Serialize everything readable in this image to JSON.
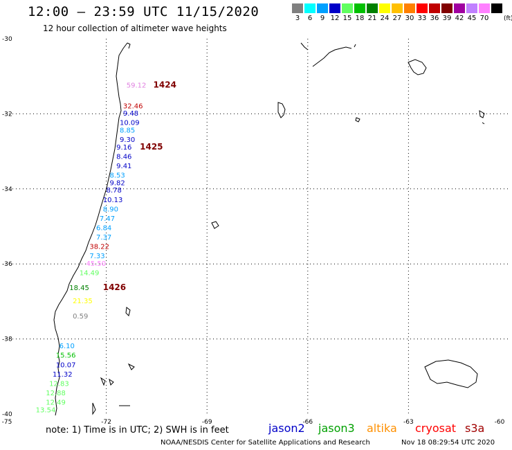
{
  "header": {
    "title": "12:00 – 23:59 UTC 11/15/2020",
    "subtitle": "12 hour collection of altimeter wave heights"
  },
  "color_scale": {
    "unit": "(ft)",
    "bins": [
      {
        "label": "3",
        "color": "#808080"
      },
      {
        "label": "6",
        "color": "#00ffff"
      },
      {
        "label": "9",
        "color": "#00a0ff"
      },
      {
        "label": "12",
        "color": "#0000c8"
      },
      {
        "label": "15",
        "color": "#60ff60"
      },
      {
        "label": "18",
        "color": "#00c000"
      },
      {
        "label": "21",
        "color": "#008000"
      },
      {
        "label": "24",
        "color": "#ffff00"
      },
      {
        "label": "27",
        "color": "#ffc000"
      },
      {
        "label": "30",
        "color": "#ff8000"
      },
      {
        "label": "33",
        "color": "#ff0000"
      },
      {
        "label": "36",
        "color": "#c00000"
      },
      {
        "label": "39",
        "color": "#800000"
      },
      {
        "label": "42",
        "color": "#a000a0"
      },
      {
        "label": "45",
        "color": "#c080ff"
      },
      {
        "label": "70",
        "color": "#ff80ff"
      },
      {
        "label": "",
        "color": "#000000"
      }
    ]
  },
  "axes": {
    "lon_ticks": [
      "-75",
      "-72",
      "-69",
      "-66",
      "-63",
      "-60"
    ],
    "lat_ticks": [
      "-30",
      "-32",
      "-34",
      "-36",
      "-38",
      "-40"
    ]
  },
  "observations": [
    {
      "text": "59.12",
      "lat": -31.3,
      "lon": -71.4,
      "color": "#e080e0"
    },
    {
      "text": "32.46",
      "lat": -31.85,
      "lon": -71.5,
      "color": "#c00000"
    },
    {
      "text": "9.48",
      "lat": -32.05,
      "lon": -71.5,
      "color": "#0000c8"
    },
    {
      "text": "10.09",
      "lat": -32.3,
      "lon": -71.6,
      "color": "#0000c8"
    },
    {
      "text": "8.85",
      "lat": -32.5,
      "lon": -71.6,
      "color": "#00a0ff"
    },
    {
      "text": "9.30",
      "lat": -32.75,
      "lon": -71.6,
      "color": "#0000c8"
    },
    {
      "text": "9.16",
      "lat": -32.95,
      "lon": -71.7,
      "color": "#0000c8"
    },
    {
      "text": "8.46",
      "lat": -33.2,
      "lon": -71.7,
      "color": "#0000c8"
    },
    {
      "text": "9.41",
      "lat": -33.45,
      "lon": -71.7,
      "color": "#0000c8"
    },
    {
      "text": "8.53",
      "lat": -33.7,
      "lon": -71.9,
      "color": "#00a0ff"
    },
    {
      "text": "9.82",
      "lat": -33.9,
      "lon": -71.9,
      "color": "#0000c8"
    },
    {
      "text": "8.78",
      "lat": -34.1,
      "lon": -72.0,
      "color": "#0000c8"
    },
    {
      "text": "10.13",
      "lat": -34.35,
      "lon": -72.1,
      "color": "#0000c8"
    },
    {
      "text": "8.90",
      "lat": -34.6,
      "lon": -72.1,
      "color": "#00a0ff"
    },
    {
      "text": "7.47",
      "lat": -34.85,
      "lon": -72.2,
      "color": "#00a0ff"
    },
    {
      "text": "6.84",
      "lat": -35.1,
      "lon": -72.3,
      "color": "#00a0ff"
    },
    {
      "text": "7.37",
      "lat": -35.35,
      "lon": -72.3,
      "color": "#00a0ff"
    },
    {
      "text": "38.22",
      "lat": -35.6,
      "lon": -72.5,
      "color": "#c00000"
    },
    {
      "text": "7.33",
      "lat": -35.85,
      "lon": -72.5,
      "color": "#00a0ff"
    },
    {
      "text": "45.50",
      "lat": -36.05,
      "lon": -72.6,
      "color": "#ff80ff"
    },
    {
      "text": "14.49",
      "lat": -36.3,
      "lon": -72.8,
      "color": "#60ff60"
    },
    {
      "text": "18.45",
      "lat": -36.7,
      "lon": -73.1,
      "color": "#008000"
    },
    {
      "text": "21.35",
      "lat": -37.05,
      "lon": -73.0,
      "color": "#ffff00"
    },
    {
      "text": "0.59",
      "lat": -37.45,
      "lon": -73.0,
      "color": "#808080"
    },
    {
      "text": "6.10",
      "lat": -38.25,
      "lon": -73.4,
      "color": "#00a0ff"
    },
    {
      "text": "15.56",
      "lat": -38.5,
      "lon": -73.5,
      "color": "#00c000"
    },
    {
      "text": "10.07",
      "lat": -38.75,
      "lon": -73.5,
      "color": "#0000c8"
    },
    {
      "text": "11.32",
      "lat": -39.0,
      "lon": -73.6,
      "color": "#0000c8"
    },
    {
      "text": "12.83",
      "lat": -39.25,
      "lon": -73.7,
      "color": "#60ff60"
    },
    {
      "text": "12.88",
      "lat": -39.5,
      "lon": -73.8,
      "color": "#60ff60"
    },
    {
      "text": "12.49",
      "lat": -39.75,
      "lon": -73.8,
      "color": "#60ff60"
    },
    {
      "text": "13.54",
      "lat": -39.95,
      "lon": -74.1,
      "color": "#60ff60"
    }
  ],
  "time_labels": [
    {
      "text": "1424",
      "lat": -31.3,
      "lon": -70.6
    },
    {
      "text": "1425",
      "lat": -32.95,
      "lon": -71.0
    },
    {
      "text": "1426",
      "lat": -36.7,
      "lon": -72.1
    }
  ],
  "footer": {
    "note": "note:  1) Time is in UTC; 2) SWH is in feet",
    "satellites": [
      {
        "name": "jason2",
        "color": "#0000c8"
      },
      {
        "name": "jason3",
        "color": "#00a000"
      },
      {
        "name": "altika",
        "color": "#ff9000"
      },
      {
        "name": "cryosat",
        "color": "#ff0000"
      },
      {
        "name": "s3a",
        "color": "#a00000"
      }
    ],
    "credit": "NOAA/NESDIS Center for Satellite Applications and Research",
    "timestamp": "Nov 18 08:29:54 UTC 2020"
  }
}
